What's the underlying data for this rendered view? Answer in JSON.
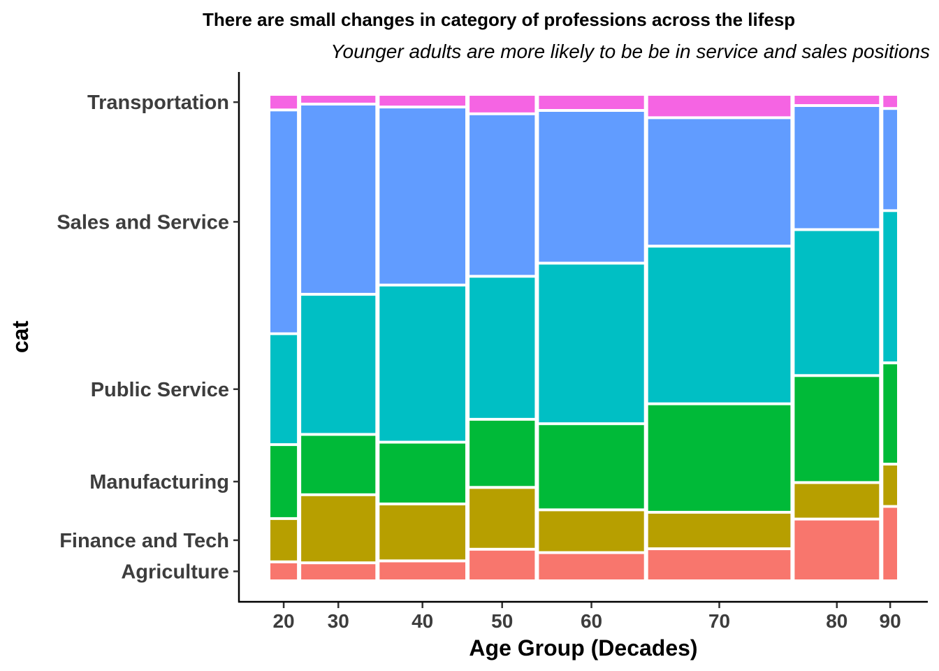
{
  "chart_data": {
    "type": "mosaic",
    "title": "There are small changes in category of professions across the lifesp",
    "subtitle": "Younger adults are more likely to be be in service and sales positions",
    "xlabel": "Age Group (Decades)",
    "ylabel": "cat",
    "categories": [
      "20",
      "30",
      "40",
      "50",
      "60",
      "70",
      "80",
      "90"
    ],
    "column_widths": [
      0.048,
      0.122,
      0.14,
      0.108,
      0.17,
      0.228,
      0.138,
      0.028
    ],
    "series": [
      {
        "name": "Agriculture",
        "color": "#F8766D",
        "values": [
          0.039,
          0.037,
          0.041,
          0.065,
          0.058,
          0.066,
          0.127,
          0.153
        ]
      },
      {
        "name": "Finance and Tech",
        "color": "#B79F00",
        "values": [
          0.089,
          0.14,
          0.117,
          0.127,
          0.088,
          0.075,
          0.075,
          0.087
        ]
      },
      {
        "name": "Manufacturing",
        "color": "#00BA38",
        "values": [
          0.152,
          0.124,
          0.127,
          0.14,
          0.177,
          0.223,
          0.22,
          0.208
        ]
      },
      {
        "name": "Public Service",
        "color": "#00BFC4",
        "values": [
          0.228,
          0.288,
          0.323,
          0.294,
          0.33,
          0.324,
          0.3,
          0.313
        ]
      },
      {
        "name": "Sales and Service",
        "color": "#619CFF",
        "values": [
          0.46,
          0.391,
          0.366,
          0.334,
          0.314,
          0.264,
          0.255,
          0.21
        ]
      },
      {
        "name": "Transportation",
        "color": "#F564E3",
        "values": [
          0.032,
          0.02,
          0.026,
          0.04,
          0.033,
          0.048,
          0.023,
          0.029
        ]
      }
    ],
    "y_tick_labels": [
      "Transportation",
      "Sales and Service",
      "Public Service",
      "Manufacturing",
      "Finance and Tech",
      "Agriculture"
    ],
    "x_tick_labels": [
      "20",
      "30",
      "40",
      "50",
      "60",
      "70",
      "80",
      "90"
    ],
    "legend": "none",
    "grid": false
  }
}
